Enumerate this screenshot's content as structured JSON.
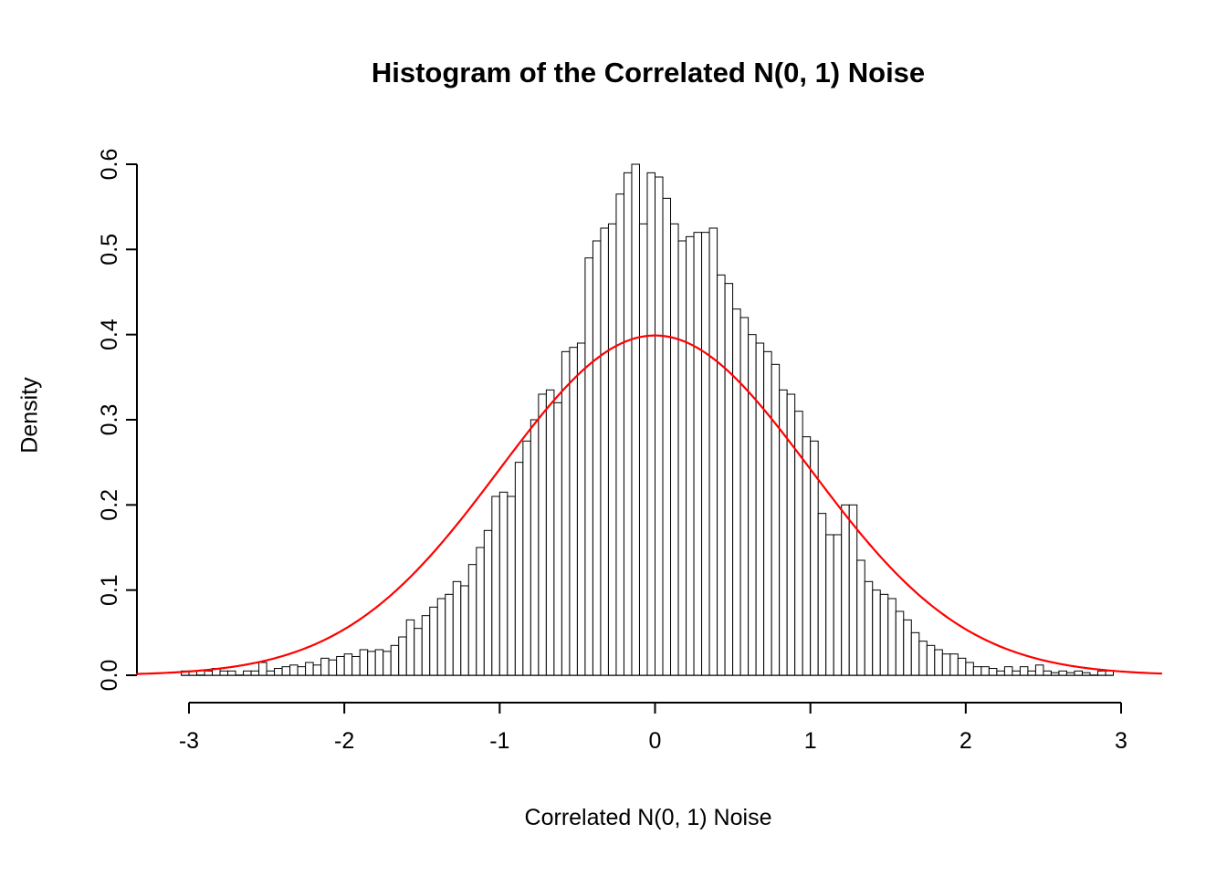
{
  "chart": {
    "title": "Histogram of the Correlated N(0, 1) Noise",
    "xlabel": "Correlated N(0, 1) Noise",
    "ylabel": "Density"
  },
  "chart_data": {
    "type": "bar",
    "subtype": "histogram-with-density-curve",
    "title": "Histogram of the Correlated N(0, 1) Noise",
    "xlabel": "Correlated N(0, 1) Noise",
    "ylabel": "Density",
    "xlim": [
      -3.35,
      3.25
    ],
    "ylim": [
      0,
      0.6
    ],
    "grid": false,
    "legend": false,
    "x_ticks": [
      -3,
      -2,
      -1,
      0,
      1,
      2,
      3
    ],
    "x_tick_labels": [
      "-3",
      "-2",
      "-1",
      "0",
      "1",
      "2",
      "3"
    ],
    "y_ticks": [
      0,
      0.1,
      0.2,
      0.3,
      0.4,
      0.5,
      0.6
    ],
    "y_tick_labels": [
      "0.0",
      "0.1",
      "0.2",
      "0.3",
      "0.4",
      "0.5",
      "0.6"
    ],
    "bin_start": -3.05,
    "bin_width": 0.05,
    "bar_fill": "#ffffff",
    "bar_stroke": "#000000",
    "densities": [
      0.005,
      0.005,
      0,
      0.005,
      0.008,
      0.005,
      0.005,
      0,
      0.005,
      0.005,
      0.015,
      0.005,
      0.008,
      0.01,
      0.012,
      0.01,
      0.015,
      0.012,
      0.02,
      0.018,
      0.022,
      0.025,
      0.022,
      0.03,
      0.028,
      0.03,
      0.028,
      0.035,
      0.045,
      0.065,
      0.055,
      0.07,
      0.08,
      0.09,
      0.095,
      0.11,
      0.105,
      0.13,
      0.15,
      0.17,
      0.21,
      0.215,
      0.21,
      0.25,
      0.275,
      0.3,
      0.33,
      0.335,
      0.32,
      0.38,
      0.385,
      0.39,
      0.49,
      0.51,
      0.525,
      0.53,
      0.565,
      0.59,
      0.6,
      0.53,
      0.59,
      0.585,
      0.56,
      0.53,
      0.51,
      0.515,
      0.52,
      0.52,
      0.525,
      0.47,
      0.46,
      0.43,
      0.42,
      0.4,
      0.39,
      0.38,
      0.365,
      0.335,
      0.33,
      0.31,
      0.28,
      0.275,
      0.19,
      0.165,
      0.165,
      0.2,
      0.2,
      0.135,
      0.11,
      0.1,
      0.095,
      0.09,
      0.075,
      0.065,
      0.05,
      0.04,
      0.035,
      0.03,
      0.025,
      0.025,
      0.02,
      0.015,
      0.01,
      0.01,
      0.008,
      0.005,
      0.01,
      0.005,
      0.01,
      0.005,
      0.012,
      0.005,
      0.003,
      0.005,
      0.003,
      0.005,
      0.003,
      0,
      0.005,
      0.005
    ],
    "overlay_curve": {
      "name": "standard-normal-density",
      "mean": 0,
      "sd": 1,
      "peak_density": 0.4,
      "color": "#ff0000"
    }
  }
}
